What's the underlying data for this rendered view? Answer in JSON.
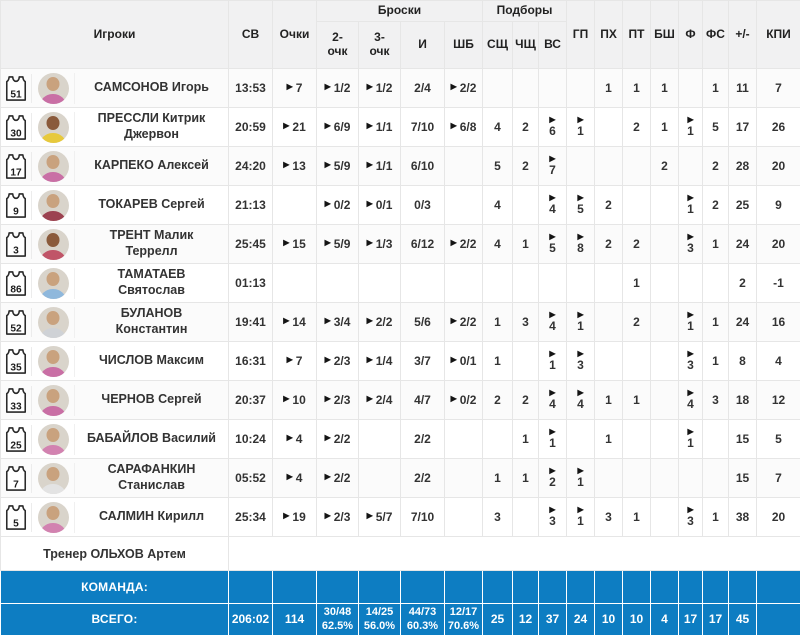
{
  "colors": {
    "accent_blue": "#0d7dc2",
    "header_bg": "#f1f1f2",
    "text": "#333333",
    "arrow": "#141414"
  },
  "icons": {
    "stat_arrow": "▶",
    "jersey": "jersey-outline"
  },
  "header": {
    "players": "Игроки",
    "sv": "СВ",
    "points": "Очки",
    "shots_group": "Броски",
    "rebounds_group": "Подборы",
    "shots_cols": [
      "2-\nочк",
      "3-\nочк",
      "И",
      "ШБ"
    ],
    "rebounds_cols": [
      "СЩ",
      "ЧЩ",
      "ВС"
    ],
    "right_cols": [
      "ГП",
      "ПХ",
      "ПТ",
      "БШ",
      "Ф",
      "ФС",
      "+/-",
      "КПИ"
    ]
  },
  "stat_columns": [
    {
      "key": "sv",
      "arrow": false,
      "stacked": false
    },
    {
      "key": "points",
      "arrow": true,
      "stacked": false
    },
    {
      "key": "p2",
      "arrow": true,
      "stacked": false
    },
    {
      "key": "p3",
      "arrow": true,
      "stacked": false
    },
    {
      "key": "i",
      "arrow": false,
      "stacked": false
    },
    {
      "key": "shb",
      "arrow": true,
      "stacked": false
    },
    {
      "key": "sch",
      "arrow": false,
      "stacked": false
    },
    {
      "key": "chsch",
      "arrow": false,
      "stacked": false
    },
    {
      "key": "vs",
      "arrow": true,
      "stacked": true
    },
    {
      "key": "gp",
      "arrow": true,
      "stacked": true
    },
    {
      "key": "ph",
      "arrow": false,
      "stacked": false
    },
    {
      "key": "pt",
      "arrow": false,
      "stacked": false
    },
    {
      "key": "bsh",
      "arrow": false,
      "stacked": false
    },
    {
      "key": "f",
      "arrow": true,
      "stacked": true
    },
    {
      "key": "fs",
      "arrow": false,
      "stacked": false
    },
    {
      "key": "pm",
      "arrow": false,
      "stacked": false
    },
    {
      "key": "kpi",
      "arrow": false,
      "stacked": false
    }
  ],
  "rows": [
    {
      "number": "51",
      "name": "САМСОНОВ Игорь",
      "jersey": "#c96fa5",
      "skin": "#c9a27e",
      "sv": "13:53",
      "points": "7",
      "p2": "1/2",
      "p3": "1/2",
      "i": "2/4",
      "shb": "2/2",
      "sch": "",
      "chsch": "",
      "vs": "",
      "gp": "",
      "ph": "1",
      "pt": "1",
      "bsh": "1",
      "f": "",
      "fs": "1",
      "pm": "11",
      "kpi": "7"
    },
    {
      "number": "30",
      "name": "ПРЕССЛИ Китрик Джервон",
      "jersey": "#e7c93c",
      "skin": "#8a5a3b",
      "sv": "20:59",
      "points": "21",
      "p2": "6/9",
      "p3": "1/1",
      "i": "7/10",
      "shb": "6/8",
      "sch": "4",
      "chsch": "2",
      "vs": "6",
      "gp": "1",
      "ph": "",
      "pt": "2",
      "bsh": "1",
      "f": "1",
      "fs": "5",
      "pm": "17",
      "kpi": "26"
    },
    {
      "number": "17",
      "name": "КАРПЕКО Алексей",
      "jersey": "#c96fa5",
      "skin": "#c9a27e",
      "sv": "24:20",
      "points": "13",
      "p2": "5/9",
      "p3": "1/1",
      "i": "6/10",
      "shb": "",
      "sch": "5",
      "chsch": "2",
      "vs": "7",
      "gp": "",
      "ph": "",
      "pt": "",
      "bsh": "2",
      "f": "",
      "fs": "2",
      "pm": "28",
      "kpi": "20"
    },
    {
      "number": "9",
      "name": "ТОКАРЕВ Сергей",
      "jersey": "#9c4250",
      "skin": "#c9a27e",
      "sv": "21:13",
      "points": "",
      "p2": "0/2",
      "p3": "0/1",
      "i": "0/3",
      "shb": "",
      "sch": "4",
      "chsch": "",
      "vs": "4",
      "gp": "5",
      "ph": "2",
      "pt": "",
      "bsh": "",
      "f": "1",
      "fs": "2",
      "pm": "25",
      "kpi": "9"
    },
    {
      "number": "3",
      "name": "ТРЕНТ Малик Террелл",
      "jersey": "#c05568",
      "skin": "#8a5a3b",
      "sv": "25:45",
      "points": "15",
      "p2": "5/9",
      "p3": "1/3",
      "i": "6/12",
      "shb": "2/2",
      "sch": "4",
      "chsch": "1",
      "vs": "5",
      "gp": "8",
      "ph": "2",
      "pt": "2",
      "bsh": "",
      "f": "3",
      "fs": "1",
      "pm": "24",
      "kpi": "20"
    },
    {
      "number": "86",
      "name": "ТАМАТАЕВ Святослав",
      "jersey": "#8fb8dc",
      "skin": "#c9a27e",
      "sv": "01:13",
      "points": "",
      "p2": "",
      "p3": "",
      "i": "",
      "shb": "",
      "sch": "",
      "chsch": "",
      "vs": "",
      "gp": "",
      "ph": "",
      "pt": "1",
      "bsh": "",
      "f": "",
      "fs": "",
      "pm": "2",
      "kpi": "-1"
    },
    {
      "number": "52",
      "name": "БУЛАНОВ Константин",
      "jersey": "#cfd2d6",
      "skin": "#c9a27e",
      "sv": "19:41",
      "points": "14",
      "p2": "3/4",
      "p3": "2/2",
      "i": "5/6",
      "shb": "2/2",
      "sch": "1",
      "chsch": "3",
      "vs": "4",
      "gp": "1",
      "ph": "",
      "pt": "2",
      "bsh": "",
      "f": "1",
      "fs": "1",
      "pm": "24",
      "kpi": "16"
    },
    {
      "number": "35",
      "name": "ЧИСЛОВ Максим",
      "jersey": "#c96fa5",
      "skin": "#c9a27e",
      "sv": "16:31",
      "points": "7",
      "p2": "2/3",
      "p3": "1/4",
      "i": "3/7",
      "shb": "0/1",
      "sch": "1",
      "chsch": "",
      "vs": "1",
      "gp": "3",
      "ph": "",
      "pt": "",
      "bsh": "",
      "f": "3",
      "fs": "1",
      "pm": "8",
      "kpi": "4"
    },
    {
      "number": "33",
      "name": "ЧЕРНОВ Сергей",
      "jersey": "#c96fa5",
      "skin": "#c9a27e",
      "sv": "20:37",
      "points": "10",
      "p2": "2/3",
      "p3": "2/4",
      "i": "4/7",
      "shb": "0/2",
      "sch": "2",
      "chsch": "2",
      "vs": "4",
      "gp": "4",
      "ph": "1",
      "pt": "1",
      "bsh": "",
      "f": "4",
      "fs": "3",
      "pm": "18",
      "kpi": "12"
    },
    {
      "number": "25",
      "name": "БАБАЙЛОВ Василий",
      "jersey": "#d282b0",
      "skin": "#c9a27e",
      "sv": "10:24",
      "points": "4",
      "p2": "2/2",
      "p3": "",
      "i": "2/2",
      "shb": "",
      "sch": "",
      "chsch": "1",
      "vs": "1",
      "gp": "",
      "ph": "1",
      "pt": "",
      "bsh": "",
      "f": "1",
      "fs": "",
      "pm": "15",
      "kpi": "5"
    },
    {
      "number": "7",
      "name": "САРАФАНКИН Станислав",
      "jersey": "#e3e3e3",
      "skin": "#c9a27e",
      "sv": "05:52",
      "points": "4",
      "p2": "2/2",
      "p3": "",
      "i": "2/2",
      "shb": "",
      "sch": "1",
      "chsch": "1",
      "vs": "2",
      "gp": "1",
      "ph": "",
      "pt": "",
      "bsh": "",
      "f": "",
      "fs": "",
      "pm": "15",
      "kpi": "7"
    },
    {
      "number": "5",
      "name": "САЛМИН Кирилл",
      "jersey": "#d282b0",
      "skin": "#c9a27e",
      "sv": "25:34",
      "points": "19",
      "p2": "2/3",
      "p3": "5/7",
      "i": "7/10",
      "shb": "",
      "sch": "3",
      "chsch": "",
      "vs": "3",
      "gp": "1",
      "ph": "3",
      "pt": "1",
      "bsh": "",
      "f": "3",
      "fs": "1",
      "pm": "38",
      "kpi": "20"
    }
  ],
  "coach_row": {
    "label": "Тренер ОЛЬХОВ Артем"
  },
  "team_row": {
    "label": "КОМАНДА:"
  },
  "totals_row": {
    "label": "ВСЕГО:",
    "sv": "206:02",
    "points": "114",
    "p2": "30/48\n62.5%",
    "p3": "14/25\n56.0%",
    "i": "44/73\n60.3%",
    "shb": "12/17\n70.6%",
    "sch": "25",
    "chsch": "12",
    "vs": "37",
    "gp": "24",
    "ph": "10",
    "pt": "10",
    "bsh": "4",
    "f": "17",
    "fs": "17",
    "pm": "45",
    "kpi": ""
  }
}
